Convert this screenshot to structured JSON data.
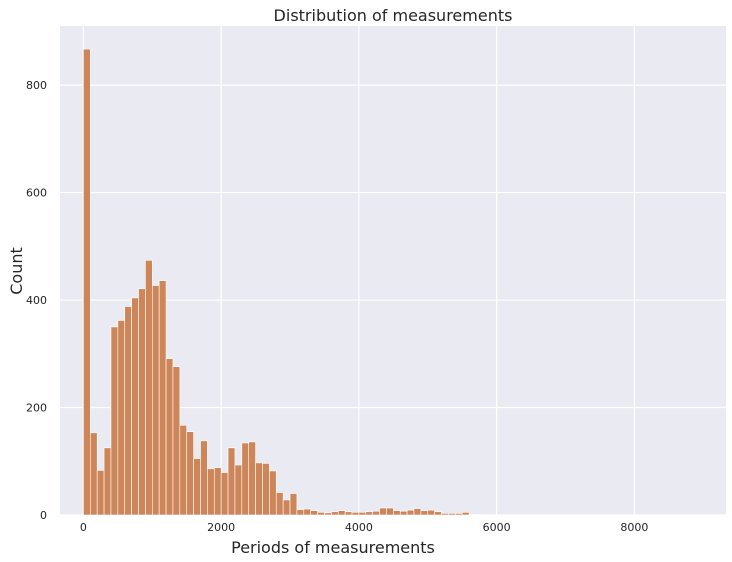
{
  "chart_data": {
    "type": "bar",
    "title": "Distribution of measurements",
    "xlabel": "Periods of measurements",
    "ylabel": "Count",
    "xlim": [
      -340,
      9330
    ],
    "ylim": [
      0,
      910
    ],
    "xticks": [
      0,
      2000,
      4000,
      6000,
      8000
    ],
    "yticks": [
      0,
      200,
      400,
      600,
      800
    ],
    "bin_width": 100,
    "bin_start": 0,
    "values": [
      867,
      153,
      83,
      125,
      350,
      362,
      388,
      404,
      421,
      474,
      427,
      436,
      291,
      276,
      167,
      155,
      105,
      138,
      86,
      88,
      79,
      125,
      93,
      134,
      136,
      97,
      96,
      82,
      42,
      28,
      40,
      10,
      11,
      8,
      5,
      4,
      6,
      8,
      6,
      5,
      5,
      6,
      7,
      13,
      13,
      8,
      7,
      9,
      12,
      8,
      9,
      6,
      3,
      3,
      3,
      5,
      1,
      1,
      0,
      0,
      0,
      0,
      0,
      0,
      0,
      0,
      0,
      0,
      0,
      0,
      0,
      0,
      0,
      0,
      0,
      0,
      0,
      0,
      0,
      0,
      0,
      0,
      0,
      0,
      0,
      0,
      0,
      0,
      0
    ],
    "grid": true,
    "colors": {
      "bar": "#cd8659",
      "background": "#eaeaf2",
      "grid": "#ffffff"
    }
  }
}
